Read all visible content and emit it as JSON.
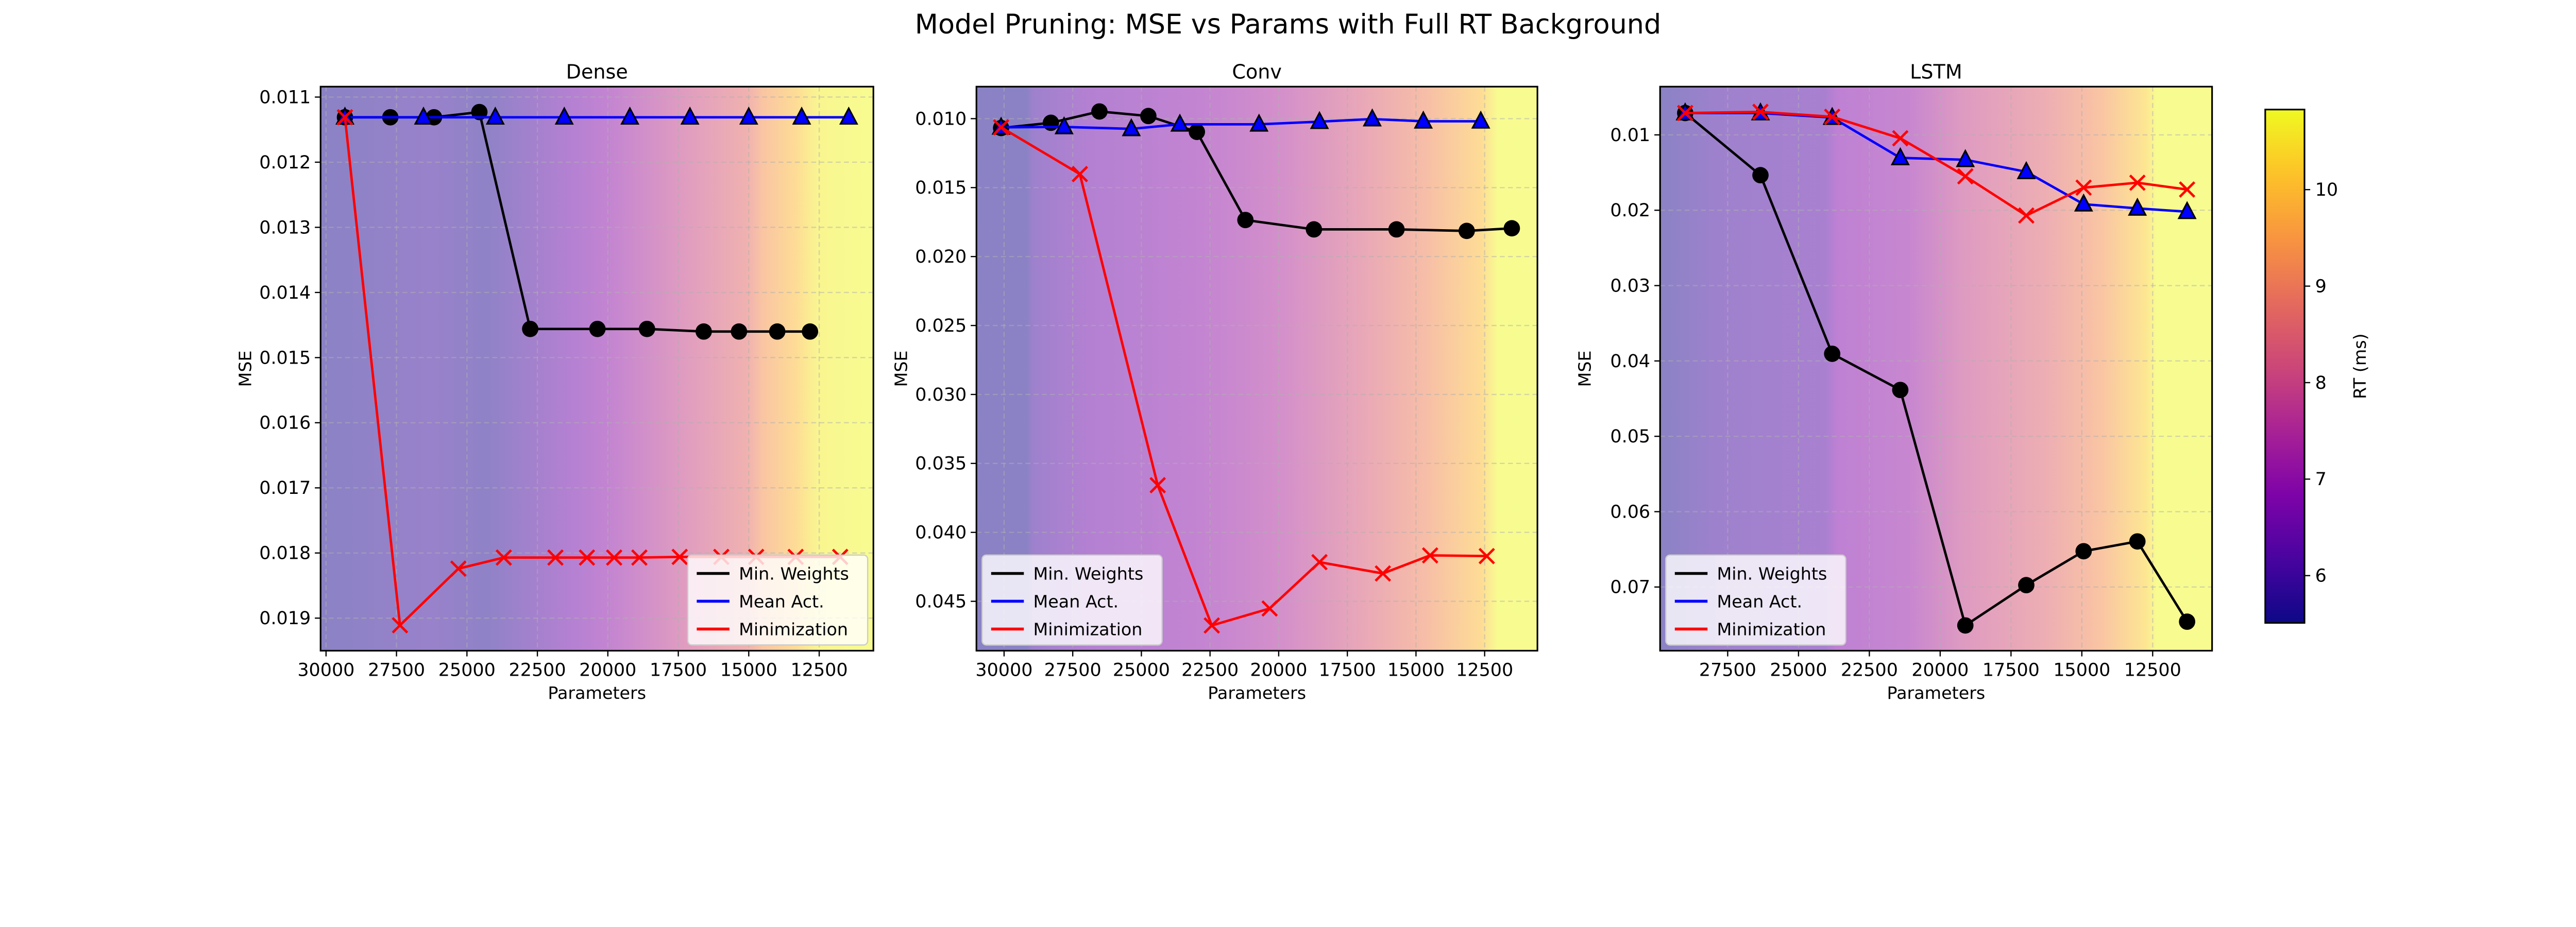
{
  "title": "Model Pruning: MSE vs Params with Full RT Background",
  "chart_data": [
    {
      "type": "line",
      "title": "Dense",
      "xlabel": "Parameters",
      "ylabel": "MSE",
      "xlim": [
        30194,
        10577
      ],
      "ylim": [
        0.0195,
        0.01084
      ],
      "y_inverted": true,
      "x_inverted": true,
      "grid": true,
      "legend": "lower right",
      "xticks": [
        30000,
        27500,
        25000,
        22500,
        20000,
        17500,
        15000,
        12500
      ],
      "xtick_labels": [
        "30000",
        "27500",
        "25000",
        "22500",
        "20000",
        "17500",
        "15000",
        "12500"
      ],
      "yticks": [
        0.011,
        0.012,
        0.013,
        0.014,
        0.015,
        0.016,
        0.017,
        0.018,
        0.019
      ],
      "ytick_labels": [
        "0.011",
        "0.012",
        "0.013",
        "0.014",
        "0.015",
        "0.016",
        "0.017",
        "0.018",
        "0.019"
      ],
      "series": [
        {
          "name": "Min. Weights",
          "color": "#000000",
          "marker": "circle",
          "x": [
            29329,
            27719,
            26169,
            24559,
            22755,
            20370,
            18611,
            16598,
            15346,
            13989,
            12826
          ],
          "y": [
            0.01131,
            0.01131,
            0.01131,
            0.01123,
            0.01456,
            0.01456,
            0.01456,
            0.0146,
            0.0146,
            0.0146,
            0.0146
          ]
        },
        {
          "name": "Mean Act.",
          "color": "#0000ff",
          "marker": "triangle",
          "x": [
            29329,
            26542,
            23994,
            21546,
            19218,
            17087,
            15000,
            13122,
            11452
          ],
          "y": [
            0.01131,
            0.01131,
            0.01131,
            0.01131,
            0.01131,
            0.01131,
            0.01131,
            0.01131,
            0.01131
          ]
        },
        {
          "name": "Minimization",
          "color": "#ff0000",
          "marker": "x",
          "x": [
            29329,
            27376,
            25304,
            23693,
            21860,
            20742,
            19776,
            18881,
            17450,
            15974,
            14737,
            13335,
            11755
          ],
          "y": [
            0.01131,
            0.01911,
            0.01824,
            0.01807,
            0.01807,
            0.01807,
            0.01807,
            0.01807,
            0.01806,
            0.01806,
            0.01806,
            0.01806,
            0.01806
          ]
        }
      ]
    },
    {
      "type": "line",
      "title": "Conv",
      "xlabel": "Parameters",
      "ylabel": "MSE",
      "xlim": [
        31007,
        10578
      ],
      "ylim": [
        0.04858,
        0.00768
      ],
      "y_inverted": true,
      "x_inverted": true,
      "grid": true,
      "legend": "lower left",
      "xticks": [
        30000,
        27500,
        25000,
        22500,
        20000,
        17500,
        15000,
        12500
      ],
      "xtick_labels": [
        "30000",
        "27500",
        "25000",
        "22500",
        "20000",
        "17500",
        "15000",
        "12500"
      ],
      "yticks": [
        0.01,
        0.015,
        0.02,
        0.025,
        0.03,
        0.035,
        0.04,
        0.045
      ],
      "ytick_labels": [
        "0.010",
        "0.015",
        "0.020",
        "0.025",
        "0.030",
        "0.035",
        "0.040",
        "0.045"
      ],
      "series": [
        {
          "name": "Min. Weights",
          "color": "#000000",
          "marker": "circle",
          "x": [
            30108,
            28295,
            26528,
            24746,
            22979,
            21212,
            18717,
            15710,
            13153,
            11510
          ],
          "y": [
            0.01068,
            0.0103,
            0.00948,
            0.00981,
            0.01096,
            0.01735,
            0.01803,
            0.01803,
            0.01814,
            0.01795
          ]
        },
        {
          "name": "Mean Act.",
          "color": "#0000ff",
          "marker": "triangle",
          "x": [
            30108,
            27815,
            25366,
            23599,
            20716,
            18515,
            16593,
            14733,
            12641
          ],
          "y": [
            0.01063,
            0.0106,
            0.01074,
            0.01041,
            0.01041,
            0.01022,
            0.01003,
            0.01019,
            0.01019
          ]
        },
        {
          "name": "Minimization",
          "color": "#ff0000",
          "marker": "x",
          "x": [
            30108,
            27241,
            24405,
            22436,
            20329,
            18515,
            16206,
            14485,
            12423
          ],
          "y": [
            0.01063,
            0.01402,
            0.03658,
            0.04675,
            0.04552,
            0.04216,
            0.04298,
            0.04167,
            0.04172
          ]
        }
      ]
    },
    {
      "type": "line",
      "title": "LSTM",
      "xlabel": "Parameters",
      "ylabel": "MSE",
      "xlim": [
        29886,
        10403
      ],
      "ylim": [
        0.07845,
        0.0036
      ],
      "y_inverted": true,
      "x_inverted": true,
      "grid": true,
      "legend": "lower left",
      "xticks": [
        27500,
        25000,
        22500,
        20000,
        17500,
        15000,
        12500
      ],
      "xtick_labels": [
        "27500",
        "25000",
        "22500",
        "20000",
        "17500",
        "15000",
        "12500"
      ],
      "yticks": [
        0.01,
        0.02,
        0.03,
        0.04,
        0.05,
        0.06,
        0.07
      ],
      "ytick_labels": [
        "0.01",
        "0.02",
        "0.03",
        "0.04",
        "0.05",
        "0.06",
        "0.07"
      ],
      "series": [
        {
          "name": "Min. Weights",
          "color": "#000000",
          "marker": "circle",
          "x": [
            29000,
            26343,
            23812,
            21408,
            19112,
            16961,
            14937,
            13039,
            11285
          ],
          "y": [
            0.0071,
            0.01535,
            0.03905,
            0.04385,
            0.0751,
            0.06975,
            0.06525,
            0.06395,
            0.0746
          ]
        },
        {
          "name": "Mean Act.",
          "color": "#0000ff",
          "marker": "triangle",
          "x": [
            29000,
            26343,
            23812,
            21408,
            19112,
            16961,
            14937,
            13039,
            11285
          ],
          "y": [
            0.0071,
            0.0071,
            0.0077,
            0.01305,
            0.0133,
            0.0149,
            0.0192,
            0.01975,
            0.0202
          ]
        },
        {
          "name": "Minimization",
          "color": "#ff0000",
          "marker": "x",
          "x": [
            29000,
            26343,
            23812,
            21408,
            19112,
            16961,
            14937,
            13039,
            11285
          ],
          "y": [
            0.0071,
            0.00695,
            0.0076,
            0.01045,
            0.0155,
            0.0207,
            0.017,
            0.01635,
            0.01725
          ]
        }
      ]
    }
  ],
  "colorbar": {
    "label": "RT (ms)",
    "colormap": "plasma",
    "range": [
      5.51,
      10.83
    ],
    "ticks": [
      6,
      7,
      8,
      9,
      10
    ],
    "tick_labels": [
      "6",
      "7",
      "8",
      "9",
      "10"
    ]
  }
}
